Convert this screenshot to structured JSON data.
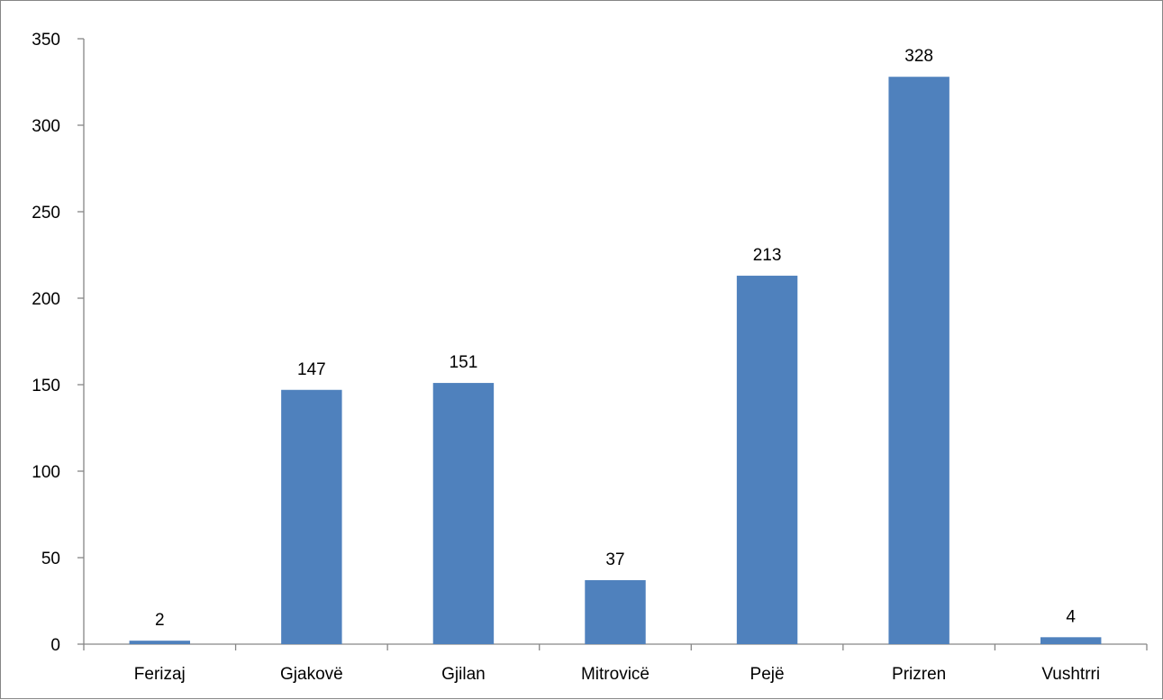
{
  "chart_data": {
    "type": "bar",
    "title": "",
    "xlabel": "",
    "ylabel": "",
    "categories": [
      "Ferizaj",
      "Gjakovë",
      "Gjilan",
      "Mitrovicë",
      "Pejë",
      "Prizren",
      "Vushtrri"
    ],
    "values": [
      2,
      147,
      151,
      37,
      213,
      328,
      4
    ],
    "data_labels": [
      "2",
      "147",
      "151",
      "37",
      "213",
      "328",
      "4"
    ],
    "ylim": [
      0,
      350
    ],
    "yticks": [
      0,
      50,
      100,
      150,
      200,
      250,
      300,
      350
    ],
    "ytick_labels": [
      "0",
      "50",
      "100",
      "150",
      "200",
      "250",
      "300",
      "350"
    ],
    "grid": false,
    "legend": "none",
    "bar_color": "#4F81BD",
    "axis_color": "#868686"
  }
}
